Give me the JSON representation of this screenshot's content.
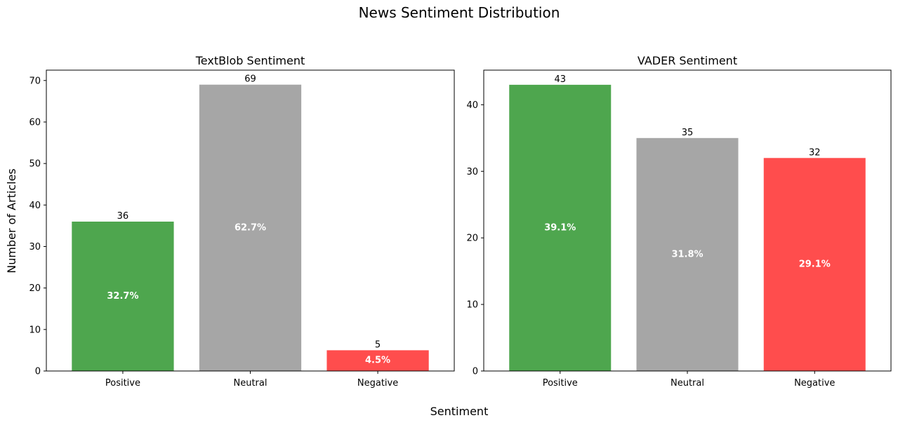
{
  "figure": {
    "title": "News Sentiment Distribution",
    "xlabel": "Sentiment",
    "ylabel": "Number of Articles"
  },
  "colors": {
    "positive": "#4ea64e",
    "neutral": "#a6a6a6",
    "negative": "#ff4d4d"
  },
  "chart_data": [
    {
      "type": "bar",
      "title": "TextBlob Sentiment",
      "categories": [
        "Positive",
        "Neutral",
        "Negative"
      ],
      "values": [
        36,
        69,
        5
      ],
      "percent_labels": [
        "32.7%",
        "62.7%",
        "4.5%"
      ],
      "ylim": [
        0,
        72.5
      ],
      "yticks": [
        0,
        10,
        20,
        30,
        40,
        50,
        60,
        70
      ],
      "grid": false,
      "bar_colors": [
        "#4ea64e",
        "#a6a6a6",
        "#ff4d4d"
      ]
    },
    {
      "type": "bar",
      "title": "VADER Sentiment",
      "categories": [
        "Positive",
        "Neutral",
        "Negative"
      ],
      "values": [
        43,
        35,
        32
      ],
      "percent_labels": [
        "39.1%",
        "31.8%",
        "29.1%"
      ],
      "ylim": [
        0,
        45.2
      ],
      "yticks": [
        0,
        10,
        20,
        30,
        40
      ],
      "grid": false,
      "bar_colors": [
        "#4ea64e",
        "#a6a6a6",
        "#ff4d4d"
      ]
    }
  ]
}
